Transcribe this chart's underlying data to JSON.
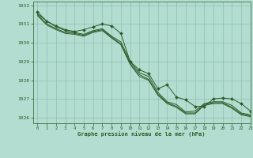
{
  "title": "Graphe pression niveau de la mer (hPa)",
  "bg_color": "#b3ddd1",
  "line_color": "#2d5a27",
  "grid_color": "#8cbfb0",
  "xlim": [
    -0.5,
    23
  ],
  "ylim": [
    1025.7,
    1032.2
  ],
  "yticks": [
    1026,
    1027,
    1028,
    1029,
    1030,
    1031,
    1032
  ],
  "xticks": [
    0,
    1,
    2,
    3,
    4,
    5,
    6,
    7,
    8,
    9,
    10,
    11,
    12,
    13,
    14,
    15,
    16,
    17,
    18,
    19,
    20,
    21,
    22,
    23
  ],
  "series_plain": [
    [
      1031.55,
      1031.15,
      1030.85,
      1030.65,
      1030.55,
      1030.45,
      1030.65,
      1030.75,
      1030.35,
      1030.05,
      1029.0,
      1028.4,
      1028.2,
      1027.35,
      1026.85,
      1026.7,
      1026.3,
      1026.35,
      1026.75,
      1026.85,
      1026.85,
      1026.65,
      1026.25,
      1026.15
    ],
    [
      1031.5,
      1031.0,
      1030.75,
      1030.55,
      1030.5,
      1030.4,
      1030.6,
      1030.7,
      1030.3,
      1029.95,
      1028.9,
      1028.3,
      1028.05,
      1027.25,
      1026.8,
      1026.6,
      1026.25,
      1026.25,
      1026.7,
      1026.8,
      1026.8,
      1026.55,
      1026.2,
      1026.1
    ],
    [
      1031.45,
      1030.95,
      1030.7,
      1030.5,
      1030.45,
      1030.35,
      1030.55,
      1030.65,
      1030.25,
      1029.9,
      1028.85,
      1028.2,
      1028.0,
      1027.2,
      1026.75,
      1026.55,
      1026.2,
      1026.2,
      1026.65,
      1026.75,
      1026.75,
      1026.5,
      1026.15,
      1026.05
    ]
  ],
  "series_marker": [
    [
      1031.65,
      1031.15,
      1030.9,
      1030.7,
      1030.6,
      1030.7,
      1030.85,
      1031.0,
      1030.9,
      1030.5,
      1029.0,
      1028.55,
      1028.35,
      1027.55,
      1027.75,
      1027.1,
      1026.95,
      1026.6,
      1026.6,
      1027.0,
      1027.05,
      1027.0,
      1026.75,
      1026.35
    ]
  ]
}
